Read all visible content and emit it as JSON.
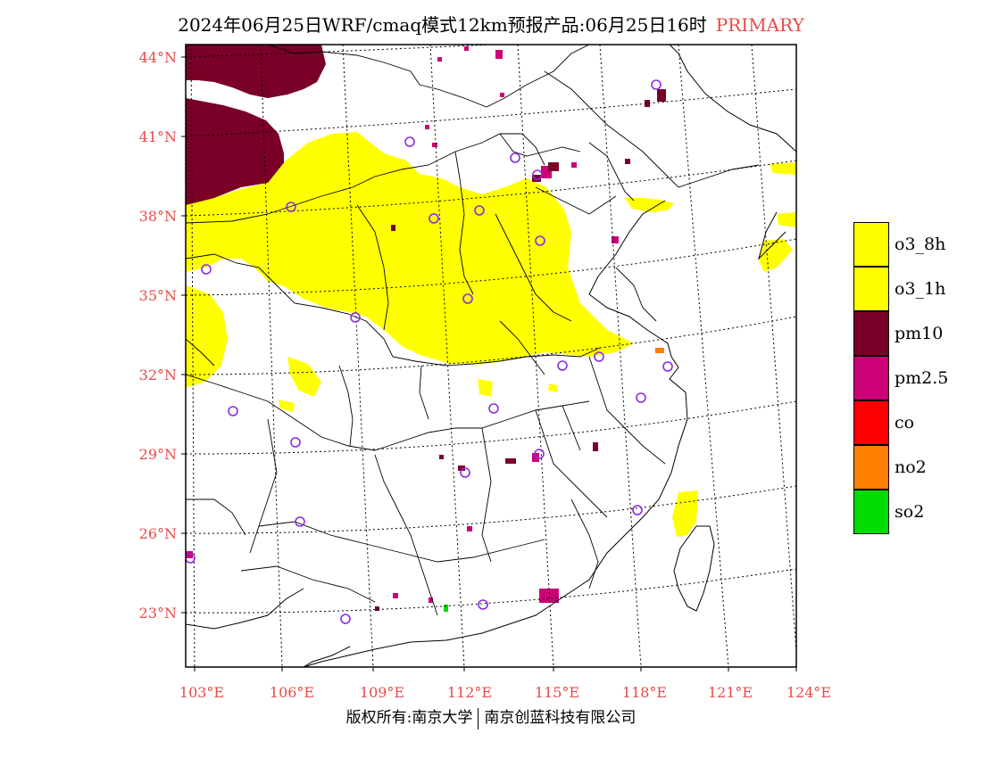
{
  "header": {
    "title": "2024年06月25日WRF/cmaq模式12km预报产品:06月25日16时",
    "tag": "PRIMARY",
    "tag_color": "#e84a4a"
  },
  "map": {
    "lat_labels": [
      "44°N",
      "41°N",
      "38°N",
      "35°N",
      "32°N",
      "29°N",
      "26°N",
      "23°N"
    ],
    "lon_labels": [
      "103°E",
      "106°E",
      "109°E",
      "112°E",
      "115°E",
      "118°E",
      "121°E",
      "124°E"
    ],
    "axis_label_color": "#e84a4a"
  },
  "legend": {
    "items": [
      {
        "label": "o3_8h",
        "color": "#ffff00"
      },
      {
        "label": "o3_1h",
        "color": "#ffff00"
      },
      {
        "label": "pm10",
        "color": "#7a0028"
      },
      {
        "label": "pm2.5",
        "color": "#cc0077"
      },
      {
        "label": "co",
        "color": "#ff0000"
      },
      {
        "label": "no2",
        "color": "#ff8000"
      },
      {
        "label": "so2",
        "color": "#00dd00"
      }
    ]
  },
  "footer": {
    "left": "版权所有:南京大学",
    "right": "南京创蓝科技有限公司"
  }
}
